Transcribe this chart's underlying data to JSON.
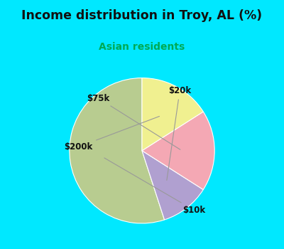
{
  "title": "Income distribution in Troy, AL (%)",
  "subtitle": "Asian residents",
  "subtitle_color": "#00aa55",
  "title_color": "#111111",
  "background_top": "#00e8ff",
  "chart_bg": "#d8f0e0",
  "slices": [
    {
      "label": "$10k",
      "value": 55,
      "color": "#b8cc90"
    },
    {
      "label": "$20k",
      "value": 11,
      "color": "#b0a0d0"
    },
    {
      "label": "$75k",
      "value": 18,
      "color": "#f4a8b4"
    },
    {
      "label": "$200k",
      "value": 16,
      "color": "#f0f090"
    }
  ],
  "startangle": 90,
  "figsize": [
    4.0,
    3.5
  ],
  "dpi": 100
}
